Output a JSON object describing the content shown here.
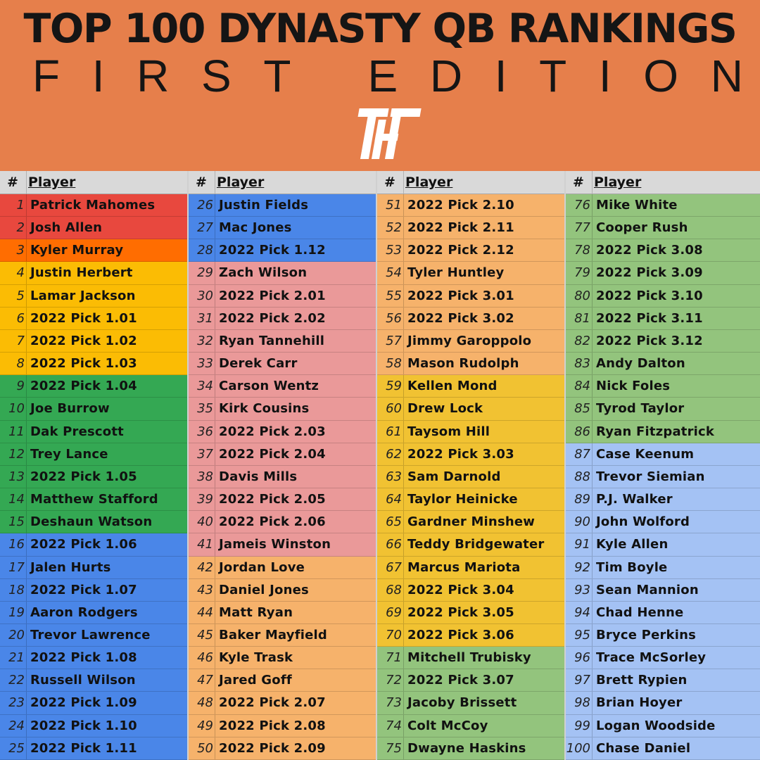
{
  "header": {
    "title": "TOP 100 DYNASTY QB RANKINGS",
    "subtitle_letters": [
      "F",
      "I",
      "R",
      "S",
      "T",
      "",
      "E",
      "D",
      "I",
      "T",
      "I",
      "O",
      "N"
    ],
    "logo": "THF"
  },
  "table": {
    "rank_header": "#",
    "player_header": "Player",
    "colors": {
      "red": "#e8483e",
      "orange": "#ff6d01",
      "gold": "#fbbc04",
      "green": "#34a853",
      "blue": "#4a86e8",
      "pink": "#ea9999",
      "peach": "#f6b26b",
      "yellow": "#f1c232",
      "lightgreen": "#93c47d",
      "lightblue": "#a4c2f4"
    },
    "columns": [
      {
        "rows": [
          {
            "rank": "1",
            "name": "Patrick Mahomes",
            "color": "red"
          },
          {
            "rank": "2",
            "name": "Josh Allen",
            "color": "red"
          },
          {
            "rank": "3",
            "name": "Kyler Murray",
            "color": "orange"
          },
          {
            "rank": "4",
            "name": "Justin Herbert",
            "color": "gold"
          },
          {
            "rank": "5",
            "name": "Lamar Jackson",
            "color": "gold"
          },
          {
            "rank": "6",
            "name": "2022 Pick 1.01",
            "color": "gold"
          },
          {
            "rank": "7",
            "name": "2022 Pick 1.02",
            "color": "gold"
          },
          {
            "rank": "8",
            "name": "2022 Pick 1.03",
            "color": "gold"
          },
          {
            "rank": "9",
            "name": "2022 Pick 1.04",
            "color": "green"
          },
          {
            "rank": "10",
            "name": "Joe Burrow",
            "color": "green"
          },
          {
            "rank": "11",
            "name": "Dak Prescott",
            "color": "green"
          },
          {
            "rank": "12",
            "name": "Trey Lance",
            "color": "green"
          },
          {
            "rank": "13",
            "name": "2022 Pick 1.05",
            "color": "green"
          },
          {
            "rank": "14",
            "name": "Matthew Stafford",
            "color": "green"
          },
          {
            "rank": "15",
            "name": "Deshaun Watson",
            "color": "green"
          },
          {
            "rank": "16",
            "name": "2022 Pick 1.06",
            "color": "blue"
          },
          {
            "rank": "17",
            "name": "Jalen Hurts",
            "color": "blue"
          },
          {
            "rank": "18",
            "name": "2022 Pick 1.07",
            "color": "blue"
          },
          {
            "rank": "19",
            "name": "Aaron Rodgers",
            "color": "blue"
          },
          {
            "rank": "20",
            "name": "Trevor Lawrence",
            "color": "blue"
          },
          {
            "rank": "21",
            "name": "2022 Pick 1.08",
            "color": "blue"
          },
          {
            "rank": "22",
            "name": "Russell Wilson",
            "color": "blue"
          },
          {
            "rank": "23",
            "name": "2022 Pick 1.09",
            "color": "blue"
          },
          {
            "rank": "24",
            "name": "2022 Pick 1.10",
            "color": "blue"
          },
          {
            "rank": "25",
            "name": "2022 Pick 1.11",
            "color": "blue"
          }
        ]
      },
      {
        "rows": [
          {
            "rank": "26",
            "name": "Justin Fields",
            "color": "blue"
          },
          {
            "rank": "27",
            "name": "Mac Jones",
            "color": "blue"
          },
          {
            "rank": "28",
            "name": "2022 Pick 1.12",
            "color": "blue"
          },
          {
            "rank": "29",
            "name": "Zach Wilson",
            "color": "pink"
          },
          {
            "rank": "30",
            "name": "2022 Pick 2.01",
            "color": "pink"
          },
          {
            "rank": "31",
            "name": "2022 Pick 2.02",
            "color": "pink"
          },
          {
            "rank": "32",
            "name": "Ryan Tannehill",
            "color": "pink"
          },
          {
            "rank": "33",
            "name": "Derek Carr",
            "color": "pink"
          },
          {
            "rank": "34",
            "name": "Carson Wentz",
            "color": "pink"
          },
          {
            "rank": "35",
            "name": "Kirk Cousins",
            "color": "pink"
          },
          {
            "rank": "36",
            "name": "2022 Pick 2.03",
            "color": "pink"
          },
          {
            "rank": "37",
            "name": "2022 Pick 2.04",
            "color": "pink"
          },
          {
            "rank": "38",
            "name": "Davis Mills",
            "color": "pink"
          },
          {
            "rank": "39",
            "name": "2022 Pick 2.05",
            "color": "pink"
          },
          {
            "rank": "40",
            "name": "2022 Pick 2.06",
            "color": "pink"
          },
          {
            "rank": "41",
            "name": "Jameis Winston",
            "color": "pink"
          },
          {
            "rank": "42",
            "name": "Jordan Love",
            "color": "peach"
          },
          {
            "rank": "43",
            "name": "Daniel Jones",
            "color": "peach"
          },
          {
            "rank": "44",
            "name": "Matt Ryan",
            "color": "peach"
          },
          {
            "rank": "45",
            "name": "Baker Mayfield",
            "color": "peach"
          },
          {
            "rank": "46",
            "name": "Kyle Trask",
            "color": "peach"
          },
          {
            "rank": "47",
            "name": "Jared Goff",
            "color": "peach"
          },
          {
            "rank": "48",
            "name": "2022 Pick 2.07",
            "color": "peach"
          },
          {
            "rank": "49",
            "name": "2022 Pick 2.08",
            "color": "peach"
          },
          {
            "rank": "50",
            "name": "2022 Pick 2.09",
            "color": "peach"
          }
        ]
      },
      {
        "rows": [
          {
            "rank": "51",
            "name": "2022 Pick 2.10",
            "color": "peach"
          },
          {
            "rank": "52",
            "name": "2022 Pick 2.11",
            "color": "peach"
          },
          {
            "rank": "53",
            "name": "2022 Pick 2.12",
            "color": "peach"
          },
          {
            "rank": "54",
            "name": "Tyler Huntley",
            "color": "peach"
          },
          {
            "rank": "55",
            "name": "2022 Pick 3.01",
            "color": "peach"
          },
          {
            "rank": "56",
            "name": "2022 Pick 3.02",
            "color": "peach"
          },
          {
            "rank": "57",
            "name": "Jimmy Garoppolo",
            "color": "peach"
          },
          {
            "rank": "58",
            "name": "Mason Rudolph",
            "color": "peach"
          },
          {
            "rank": "59",
            "name": "Kellen Mond",
            "color": "yellow"
          },
          {
            "rank": "60",
            "name": "Drew Lock",
            "color": "yellow"
          },
          {
            "rank": "61",
            "name": "Taysom Hill",
            "color": "yellow"
          },
          {
            "rank": "62",
            "name": "2022 Pick 3.03",
            "color": "yellow"
          },
          {
            "rank": "63",
            "name": "Sam Darnold",
            "color": "yellow"
          },
          {
            "rank": "64",
            "name": "Taylor Heinicke",
            "color": "yellow"
          },
          {
            "rank": "65",
            "name": "Gardner Minshew",
            "color": "yellow"
          },
          {
            "rank": "66",
            "name": "Teddy Bridgewater",
            "color": "yellow"
          },
          {
            "rank": "67",
            "name": "Marcus Mariota",
            "color": "yellow"
          },
          {
            "rank": "68",
            "name": "2022 Pick 3.04",
            "color": "yellow"
          },
          {
            "rank": "69",
            "name": "2022 Pick 3.05",
            "color": "yellow"
          },
          {
            "rank": "70",
            "name": "2022 Pick 3.06",
            "color": "yellow"
          },
          {
            "rank": "71",
            "name": "Mitchell Trubisky",
            "color": "lightgreen"
          },
          {
            "rank": "72",
            "name": "2022 Pick 3.07",
            "color": "lightgreen"
          },
          {
            "rank": "73",
            "name": "Jacoby Brissett",
            "color": "lightgreen"
          },
          {
            "rank": "74",
            "name": "Colt McCoy",
            "color": "lightgreen"
          },
          {
            "rank": "75",
            "name": "Dwayne Haskins",
            "color": "lightgreen"
          }
        ]
      },
      {
        "rows": [
          {
            "rank": "76",
            "name": "Mike White",
            "color": "lightgreen"
          },
          {
            "rank": "77",
            "name": "Cooper Rush",
            "color": "lightgreen"
          },
          {
            "rank": "78",
            "name": "2022 Pick 3.08",
            "color": "lightgreen"
          },
          {
            "rank": "79",
            "name": "2022 Pick 3.09",
            "color": "lightgreen"
          },
          {
            "rank": "80",
            "name": "2022 Pick 3.10",
            "color": "lightgreen"
          },
          {
            "rank": "81",
            "name": "2022 Pick 3.11",
            "color": "lightgreen"
          },
          {
            "rank": "82",
            "name": "2022 Pick 3.12",
            "color": "lightgreen"
          },
          {
            "rank": "83",
            "name": "Andy Dalton",
            "color": "lightgreen"
          },
          {
            "rank": "84",
            "name": "Nick Foles",
            "color": "lightgreen"
          },
          {
            "rank": "85",
            "name": "Tyrod Taylor",
            "color": "lightgreen"
          },
          {
            "rank": "86",
            "name": "Ryan Fitzpatrick",
            "color": "lightgreen"
          },
          {
            "rank": "87",
            "name": "Case Keenum",
            "color": "lightblue"
          },
          {
            "rank": "88",
            "name": "Trevor Siemian",
            "color": "lightblue"
          },
          {
            "rank": "89",
            "name": "P.J. Walker",
            "color": "lightblue"
          },
          {
            "rank": "90",
            "name": "John Wolford",
            "color": "lightblue"
          },
          {
            "rank": "91",
            "name": "Kyle Allen",
            "color": "lightblue"
          },
          {
            "rank": "92",
            "name": "Tim Boyle",
            "color": "lightblue"
          },
          {
            "rank": "93",
            "name": "Sean Mannion",
            "color": "lightblue"
          },
          {
            "rank": "94",
            "name": "Chad Henne",
            "color": "lightblue"
          },
          {
            "rank": "95",
            "name": "Bryce Perkins",
            "color": "lightblue"
          },
          {
            "rank": "96",
            "name": "Trace McSorley",
            "color": "lightblue"
          },
          {
            "rank": "97",
            "name": "Brett Rypien",
            "color": "lightblue"
          },
          {
            "rank": "98",
            "name": "Brian Hoyer",
            "color": "lightblue"
          },
          {
            "rank": "99",
            "name": "Logan Woodside",
            "color": "lightblue"
          },
          {
            "rank": "100",
            "name": "Chase Daniel",
            "color": "lightblue"
          }
        ]
      }
    ]
  }
}
